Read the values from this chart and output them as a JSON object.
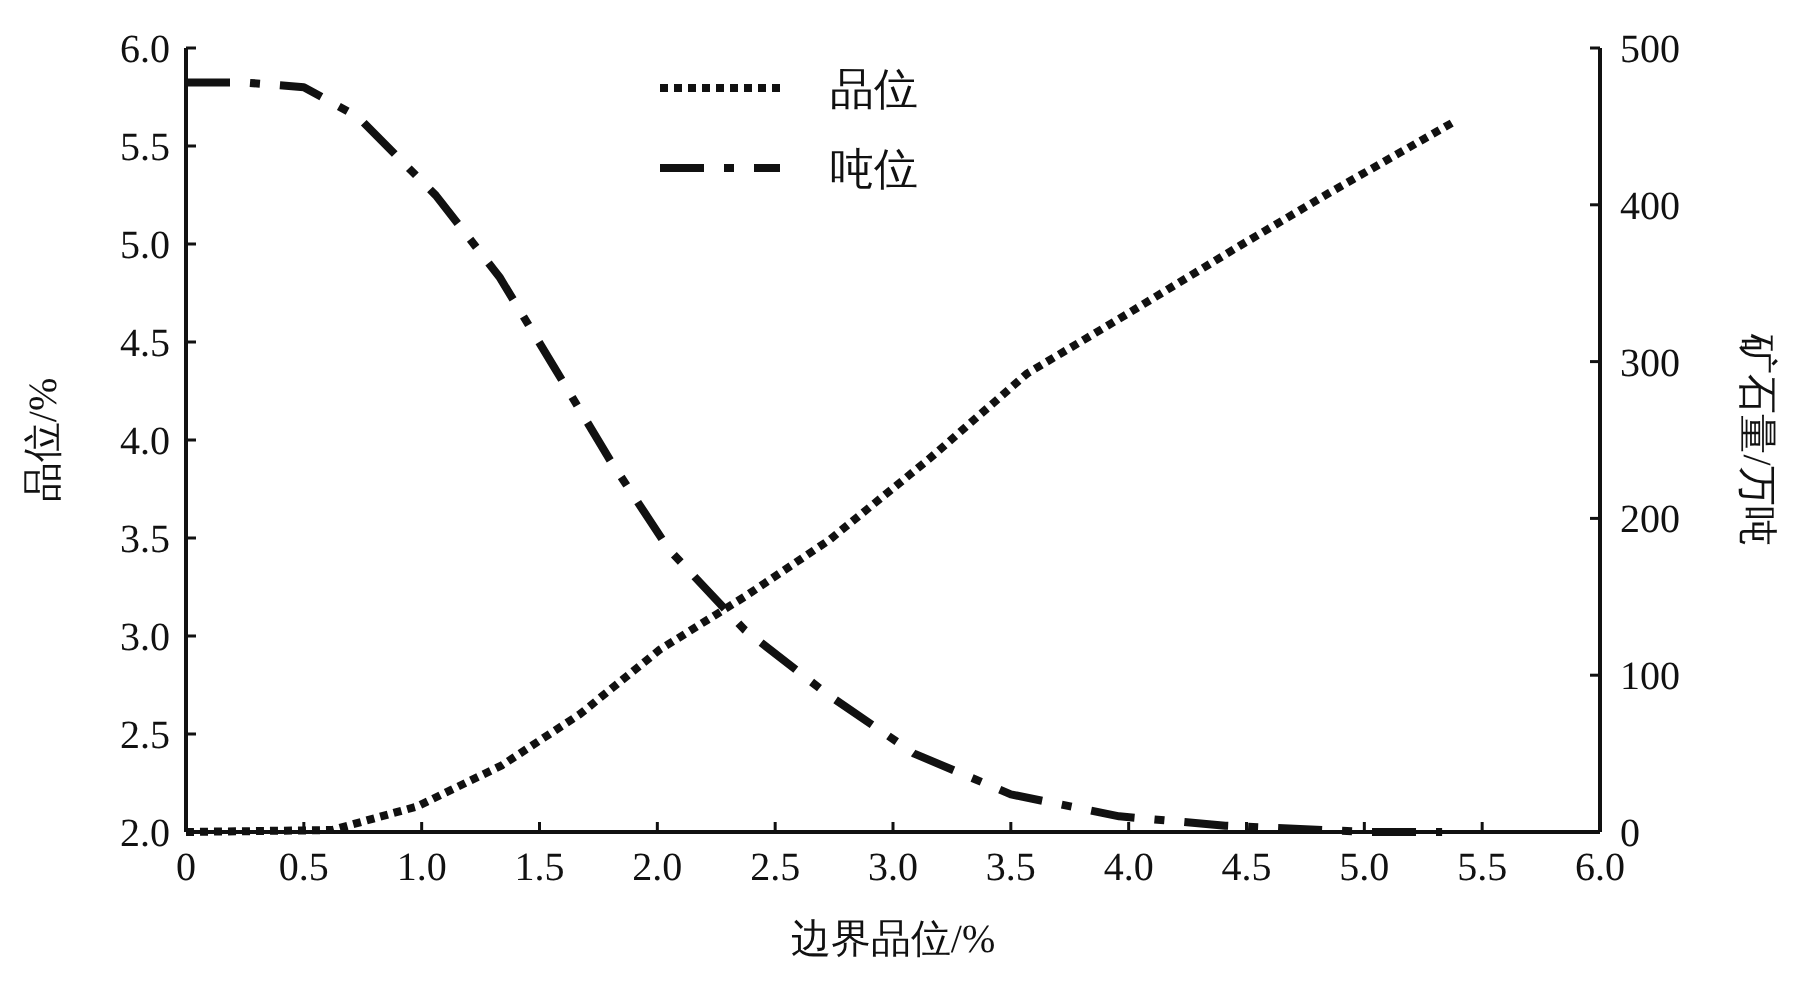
{
  "chart_data": {
    "type": "line",
    "xlabel": "边界品位/%",
    "ylabel": "品位/%",
    "y2label": "矿石量/万吨",
    "xlim": [
      0,
      6
    ],
    "xticks": [
      {
        "value": 0,
        "label": "0"
      },
      {
        "value": 0.5,
        "label": "0.5"
      },
      {
        "value": 1,
        "label": "1.0"
      },
      {
        "value": 1.5,
        "label": "1.5"
      },
      {
        "value": 2,
        "label": "2.0"
      },
      {
        "value": 2.5,
        "label": "2.5"
      },
      {
        "value": 3,
        "label": "3.0"
      },
      {
        "value": 3.5,
        "label": "3.5"
      },
      {
        "value": 4,
        "label": "4.0"
      },
      {
        "value": 4.5,
        "label": "4.5"
      },
      {
        "value": 5,
        "label": "5.0"
      },
      {
        "value": 5.5,
        "label": "5.5"
      },
      {
        "value": 6,
        "label": "6.0"
      }
    ],
    "ylim": [
      2,
      6
    ],
    "yticks": [
      {
        "value": 2,
        "label": "2.0"
      },
      2.5,
      {
        "value": 3,
        "label": "3.0"
      },
      3.5,
      {
        "value": 4,
        "label": "4.0"
      },
      4.5,
      {
        "value": 5,
        "label": "5.0"
      },
      5.5,
      {
        "value": 6,
        "label": "6.0"
      }
    ],
    "y2lim": [
      0,
      500
    ],
    "y2ticks": [
      0,
      100,
      200,
      300,
      400,
      500
    ],
    "legend": "top",
    "grid": false,
    "series": [
      {
        "name": "品位",
        "color": "#111111",
        "line_style": "dotted",
        "x": [
          0,
          0.62,
          0.98,
          1.34,
          1.67,
          2.01,
          2.37,
          2.73,
          3.15,
          3.57,
          3.99,
          4.47,
          4.85,
          5.39
        ],
        "values": [
          2.0,
          2.01,
          2.13,
          2.34,
          2.6,
          2.93,
          3.2,
          3.49,
          3.9,
          4.34,
          4.64,
          4.99,
          5.26,
          5.63
        ]
      },
      {
        "name": "吨位",
        "color": "#111111",
        "line_style": "dashdot",
        "axis": "y2",
        "x": [
          0,
          0.25,
          0.5,
          0.73,
          1.06,
          1.33,
          1.56,
          1.8,
          2.05,
          2.37,
          2.72,
          3.09,
          3.5,
          3.96,
          4.41,
          5.02,
          5.33
        ],
        "values": [
          478,
          478,
          475,
          456,
          406,
          354,
          297,
          237,
          180,
          129,
          88,
          50,
          24,
          10,
          4,
          0,
          0
        ]
      }
    ]
  }
}
